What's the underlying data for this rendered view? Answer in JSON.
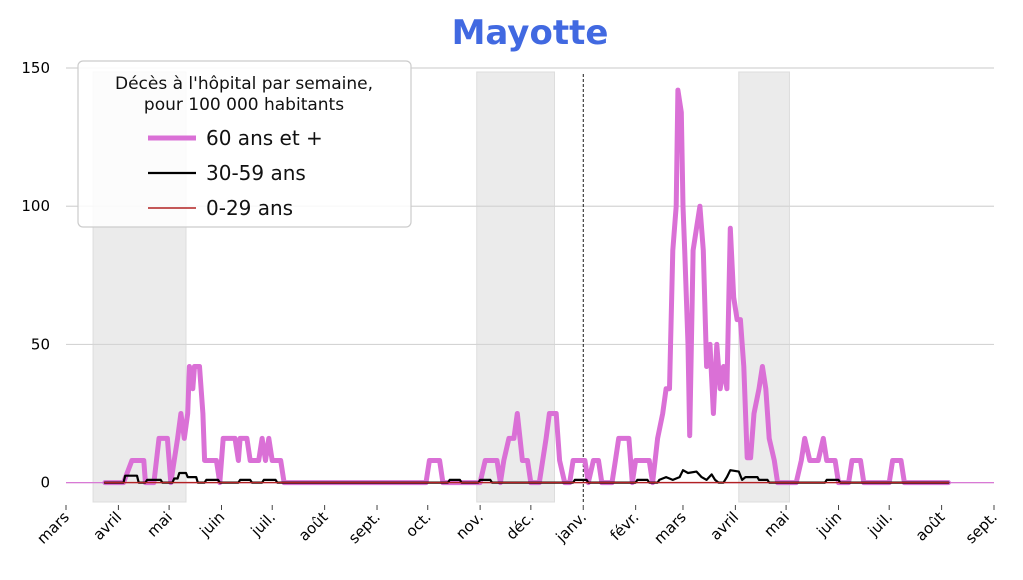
{
  "chart_data": {
    "type": "line",
    "title": "Mayotte",
    "title_color": "#4169E1",
    "ylim": [
      -7,
      150
    ],
    "yticks": [
      0,
      50,
      100,
      150
    ],
    "y_tick_labels": [
      "0",
      "50",
      "100",
      "150"
    ],
    "xlim": [
      "2020-03-01",
      "2021-09-01"
    ],
    "x_tick_dates": [
      "2020-03-01",
      "2020-04-01",
      "2020-05-01",
      "2020-06-01",
      "2020-07-01",
      "2020-08-01",
      "2020-09-01",
      "2020-10-01",
      "2020-11-01",
      "2020-12-01",
      "2021-01-01",
      "2021-02-01",
      "2021-03-01",
      "2021-04-01",
      "2021-05-01",
      "2021-06-01",
      "2021-07-01",
      "2021-08-01",
      "2021-09-01"
    ],
    "x_tick_labels": [
      "mars",
      "avril",
      "mai",
      "juin",
      "juil.",
      "août",
      "sept.",
      "oct.",
      "nov.",
      "déc.",
      "janv.",
      "févr.",
      "mars",
      "avril",
      "mai",
      "juin",
      "juil.",
      "août",
      "sept."
    ],
    "grid": "horizontal",
    "shaded_periods": [
      {
        "start": "2020-03-17",
        "end": "2020-05-11"
      },
      {
        "start": "2020-10-30",
        "end": "2020-12-15"
      },
      {
        "start": "2021-04-03",
        "end": "2021-05-03"
      }
    ],
    "vertical_marker_date": "2021-01-01",
    "horizontal_reference_y": 0,
    "legend": {
      "position": "top-left",
      "title_lines": [
        "Décès à l'hôpital par semaine,",
        "pour 100 000 habitants"
      ]
    },
    "series": [
      {
        "name": "60 ans et +",
        "color": "#DA70D6",
        "width": "thick",
        "points": [
          [
            "2020-03-24",
            0
          ],
          [
            "2020-04-04",
            0
          ],
          [
            "2020-04-09",
            8
          ],
          [
            "2020-04-16",
            8
          ],
          [
            "2020-04-17",
            0
          ],
          [
            "2020-04-22",
            0
          ],
          [
            "2020-04-25",
            16
          ],
          [
            "2020-04-30",
            16
          ],
          [
            "2020-05-02",
            0
          ],
          [
            "2020-05-04",
            8
          ],
          [
            "2020-05-06",
            16
          ],
          [
            "2020-05-08",
            25
          ],
          [
            "2020-05-10",
            16
          ],
          [
            "2020-05-12",
            25
          ],
          [
            "2020-05-13",
            42
          ],
          [
            "2020-05-15",
            34
          ],
          [
            "2020-05-16",
            42
          ],
          [
            "2020-05-19",
            42
          ],
          [
            "2020-05-21",
            25
          ],
          [
            "2020-05-22",
            8
          ],
          [
            "2020-05-29",
            8
          ],
          [
            "2020-05-31",
            0
          ],
          [
            "2020-06-02",
            16
          ],
          [
            "2020-06-09",
            16
          ],
          [
            "2020-06-11",
            8
          ],
          [
            "2020-06-12",
            16
          ],
          [
            "2020-06-16",
            16
          ],
          [
            "2020-06-18",
            8
          ],
          [
            "2020-06-23",
            8
          ],
          [
            "2020-06-25",
            16
          ],
          [
            "2020-06-27",
            8
          ],
          [
            "2020-06-29",
            16
          ],
          [
            "2020-07-01",
            8
          ],
          [
            "2020-07-06",
            8
          ],
          [
            "2020-07-08",
            0
          ],
          [
            "2020-09-30",
            0
          ],
          [
            "2020-10-02",
            8
          ],
          [
            "2020-10-08",
            8
          ],
          [
            "2020-10-10",
            0
          ],
          [
            "2020-11-01",
            0
          ],
          [
            "2020-11-04",
            8
          ],
          [
            "2020-11-11",
            8
          ],
          [
            "2020-11-13",
            0
          ],
          [
            "2020-11-15",
            8
          ],
          [
            "2020-11-18",
            16
          ],
          [
            "2020-11-21",
            16
          ],
          [
            "2020-11-23",
            25
          ],
          [
            "2020-11-26",
            8
          ],
          [
            "2020-11-29",
            8
          ],
          [
            "2020-12-01",
            0
          ],
          [
            "2020-12-06",
            0
          ],
          [
            "2020-12-08",
            8
          ],
          [
            "2020-12-10",
            16
          ],
          [
            "2020-12-12",
            25
          ],
          [
            "2020-12-16",
            25
          ],
          [
            "2020-12-18",
            8
          ],
          [
            "2020-12-21",
            0
          ],
          [
            "2020-12-24",
            0
          ],
          [
            "2020-12-26",
            8
          ],
          [
            "2021-01-02",
            8
          ],
          [
            "2021-01-04",
            0
          ],
          [
            "2021-01-07",
            8
          ],
          [
            "2021-01-10",
            8
          ],
          [
            "2021-01-12",
            0
          ],
          [
            "2021-01-18",
            0
          ],
          [
            "2021-01-20",
            8
          ],
          [
            "2021-01-22",
            16
          ],
          [
            "2021-01-28",
            16
          ],
          [
            "2021-01-30",
            0
          ],
          [
            "2021-02-01",
            8
          ],
          [
            "2021-02-09",
            8
          ],
          [
            "2021-02-11",
            0
          ],
          [
            "2021-02-14",
            16
          ],
          [
            "2021-02-17",
            25
          ],
          [
            "2021-02-19",
            34
          ],
          [
            "2021-02-21",
            34
          ],
          [
            "2021-02-23",
            84
          ],
          [
            "2021-02-25",
            100
          ],
          [
            "2021-02-26",
            142
          ],
          [
            "2021-02-28",
            134
          ],
          [
            "2021-03-01",
            100
          ],
          [
            "2021-03-02",
            84
          ],
          [
            "2021-03-04",
            50
          ],
          [
            "2021-03-05",
            17
          ],
          [
            "2021-03-07",
            84
          ],
          [
            "2021-03-09",
            92
          ],
          [
            "2021-03-11",
            100
          ],
          [
            "2021-03-13",
            84
          ],
          [
            "2021-03-15",
            42
          ],
          [
            "2021-03-17",
            50
          ],
          [
            "2021-03-19",
            25
          ],
          [
            "2021-03-21",
            50
          ],
          [
            "2021-03-23",
            34
          ],
          [
            "2021-03-25",
            42
          ],
          [
            "2021-03-27",
            34
          ],
          [
            "2021-03-29",
            92
          ],
          [
            "2021-03-31",
            67
          ],
          [
            "2021-04-02",
            59
          ],
          [
            "2021-04-04",
            59
          ],
          [
            "2021-04-06",
            42
          ],
          [
            "2021-04-08",
            9
          ],
          [
            "2021-04-10",
            9
          ],
          [
            "2021-04-12",
            25
          ],
          [
            "2021-04-15",
            34
          ],
          [
            "2021-04-17",
            42
          ],
          [
            "2021-04-19",
            34
          ],
          [
            "2021-04-21",
            16
          ],
          [
            "2021-04-24",
            8
          ],
          [
            "2021-04-26",
            0
          ],
          [
            "2021-05-07",
            0
          ],
          [
            "2021-05-10",
            8
          ],
          [
            "2021-05-12",
            16
          ],
          [
            "2021-05-15",
            8
          ],
          [
            "2021-05-20",
            8
          ],
          [
            "2021-05-23",
            16
          ],
          [
            "2021-05-25",
            8
          ],
          [
            "2021-05-30",
            8
          ],
          [
            "2021-06-01",
            0
          ],
          [
            "2021-06-07",
            0
          ],
          [
            "2021-06-09",
            8
          ],
          [
            "2021-06-14",
            8
          ],
          [
            "2021-06-16",
            0
          ],
          [
            "2021-07-01",
            0
          ],
          [
            "2021-07-03",
            8
          ],
          [
            "2021-07-08",
            8
          ],
          [
            "2021-07-10",
            0
          ],
          [
            "2021-08-05",
            0
          ]
        ]
      },
      {
        "name": "30-59 ans",
        "color": "#000000",
        "width": "medium",
        "points": [
          [
            "2020-03-24",
            0
          ],
          [
            "2020-04-04",
            0
          ],
          [
            "2020-04-05",
            2.5
          ],
          [
            "2020-04-12",
            2.5
          ],
          [
            "2020-04-13",
            0
          ],
          [
            "2020-04-17",
            0
          ],
          [
            "2020-04-18",
            1
          ],
          [
            "2020-04-26",
            1
          ],
          [
            "2020-04-27",
            0
          ],
          [
            "2020-05-03",
            0
          ],
          [
            "2020-05-04",
            1.5
          ],
          [
            "2020-05-06",
            1.5
          ],
          [
            "2020-05-07",
            3.5
          ],
          [
            "2020-05-11",
            3.5
          ],
          [
            "2020-05-12",
            2
          ],
          [
            "2020-05-17",
            2
          ],
          [
            "2020-05-18",
            0
          ],
          [
            "2020-05-22",
            0
          ],
          [
            "2020-05-23",
            1
          ],
          [
            "2020-05-30",
            1
          ],
          [
            "2020-05-31",
            0
          ],
          [
            "2020-06-11",
            0
          ],
          [
            "2020-06-12",
            1
          ],
          [
            "2020-06-18",
            1
          ],
          [
            "2020-06-19",
            0
          ],
          [
            "2020-06-25",
            0
          ],
          [
            "2020-06-26",
            1
          ],
          [
            "2020-07-03",
            1
          ],
          [
            "2020-07-04",
            0
          ],
          [
            "2020-10-13",
            0
          ],
          [
            "2020-10-14",
            1
          ],
          [
            "2020-10-20",
            1
          ],
          [
            "2020-10-21",
            0
          ],
          [
            "2020-10-31",
            0
          ],
          [
            "2020-11-01",
            1
          ],
          [
            "2020-11-07",
            1
          ],
          [
            "2020-11-08",
            0
          ],
          [
            "2020-12-26",
            0
          ],
          [
            "2020-12-27",
            1
          ],
          [
            "2021-01-03",
            1
          ],
          [
            "2021-01-04",
            0
          ],
          [
            "2021-02-01",
            0
          ],
          [
            "2021-02-02",
            1
          ],
          [
            "2021-02-08",
            1
          ],
          [
            "2021-02-09",
            0
          ],
          [
            "2021-02-14",
            0
          ],
          [
            "2021-02-15",
            1
          ],
          [
            "2021-02-19",
            2
          ],
          [
            "2021-02-23",
            1
          ],
          [
            "2021-02-27",
            2
          ],
          [
            "2021-03-01",
            4.5
          ],
          [
            "2021-03-04",
            3.5
          ],
          [
            "2021-03-09",
            4
          ],
          [
            "2021-03-12",
            2
          ],
          [
            "2021-03-15",
            1
          ],
          [
            "2021-03-18",
            3
          ],
          [
            "2021-03-20",
            1
          ],
          [
            "2021-03-22",
            0
          ],
          [
            "2021-03-25",
            0
          ],
          [
            "2021-03-27",
            2
          ],
          [
            "2021-03-29",
            4.5
          ],
          [
            "2021-04-03",
            4
          ],
          [
            "2021-04-05",
            1
          ],
          [
            "2021-04-07",
            2
          ],
          [
            "2021-04-14",
            2
          ],
          [
            "2021-04-15",
            1
          ],
          [
            "2021-04-20",
            1
          ],
          [
            "2021-04-21",
            0
          ],
          [
            "2021-05-24",
            0
          ],
          [
            "2021-05-25",
            1
          ],
          [
            "2021-06-01",
            1
          ],
          [
            "2021-06-02",
            0
          ],
          [
            "2021-08-05",
            0
          ]
        ]
      },
      {
        "name": "0-29 ans",
        "color": "#B22222",
        "width": "thin",
        "points": [
          [
            "2020-03-24",
            0
          ],
          [
            "2021-08-05",
            0
          ]
        ]
      }
    ]
  }
}
